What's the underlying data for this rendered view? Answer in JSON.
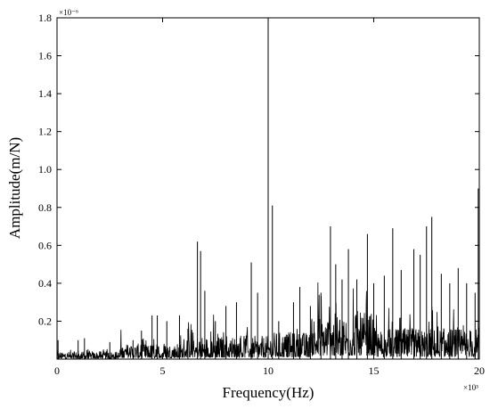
{
  "chart_data": {
    "type": "line",
    "title": "",
    "xlabel": "Frequency(Hz)",
    "ylabel": "Amplitude(m/N)",
    "x_multiplier": "×10³",
    "y_multiplier": "×10⁻⁶",
    "xlim": [
      0,
      20
    ],
    "ylim": [
      0,
      1.8
    ],
    "x_ticks": [
      0,
      5,
      10,
      15,
      20
    ],
    "x_tick_labels": [
      "0",
      "5",
      "10",
      "15",
      "20"
    ],
    "y_ticks": [
      0.2,
      0.4,
      0.6,
      0.8,
      1.0,
      1.2,
      1.4,
      1.6,
      1.8
    ],
    "y_tick_labels": [
      "0.2",
      "0.4",
      "0.6",
      "0.8",
      "1.0",
      "1.2",
      "1.4",
      "1.6",
      "1.8"
    ],
    "grid": false,
    "legend": "none",
    "line_color": "#000000",
    "series": [
      {
        "x_units": "kHz",
        "y_units": "1e-6 m/N",
        "peaks": [
          {
            "x": 0.05,
            "y": 0.1
          },
          {
            "x": 1.0,
            "y": 0.1
          },
          {
            "x": 1.3,
            "y": 0.11
          },
          {
            "x": 2.5,
            "y": 0.09
          },
          {
            "x": 3.6,
            "y": 0.1
          },
          {
            "x": 4.0,
            "y": 0.15
          },
          {
            "x": 4.5,
            "y": 0.23
          },
          {
            "x": 4.75,
            "y": 0.23
          },
          {
            "x": 5.2,
            "y": 0.2
          },
          {
            "x": 5.8,
            "y": 0.23
          },
          {
            "x": 6.2,
            "y": 0.16
          },
          {
            "x": 6.65,
            "y": 0.62
          },
          {
            "x": 6.8,
            "y": 0.57
          },
          {
            "x": 7.0,
            "y": 0.36
          },
          {
            "x": 7.5,
            "y": 0.2
          },
          {
            "x": 8.0,
            "y": 0.28
          },
          {
            "x": 8.5,
            "y": 0.3
          },
          {
            "x": 9.2,
            "y": 0.51
          },
          {
            "x": 9.5,
            "y": 0.35
          },
          {
            "x": 10.0,
            "y": 1.8
          },
          {
            "x": 10.2,
            "y": 0.81
          },
          {
            "x": 10.5,
            "y": 0.2
          },
          {
            "x": 11.2,
            "y": 0.3
          },
          {
            "x": 11.5,
            "y": 0.38
          },
          {
            "x": 12.0,
            "y": 0.28
          },
          {
            "x": 12.5,
            "y": 0.35
          },
          {
            "x": 12.95,
            "y": 0.7
          },
          {
            "x": 13.2,
            "y": 0.5
          },
          {
            "x": 13.5,
            "y": 0.42
          },
          {
            "x": 13.8,
            "y": 0.58
          },
          {
            "x": 14.2,
            "y": 0.42
          },
          {
            "x": 14.7,
            "y": 0.66
          },
          {
            "x": 15.0,
            "y": 0.4
          },
          {
            "x": 15.5,
            "y": 0.44
          },
          {
            "x": 15.9,
            "y": 0.69
          },
          {
            "x": 16.3,
            "y": 0.47
          },
          {
            "x": 16.9,
            "y": 0.58
          },
          {
            "x": 17.2,
            "y": 0.55
          },
          {
            "x": 17.5,
            "y": 0.7
          },
          {
            "x": 17.75,
            "y": 0.75
          },
          {
            "x": 18.2,
            "y": 0.45
          },
          {
            "x": 18.6,
            "y": 0.4
          },
          {
            "x": 19.0,
            "y": 0.48
          },
          {
            "x": 19.4,
            "y": 0.4
          },
          {
            "x": 19.8,
            "y": 0.35
          },
          {
            "x": 19.95,
            "y": 0.9
          }
        ],
        "baseline_segments": [
          {
            "x0": 0,
            "x1": 3,
            "level": 0.02
          },
          {
            "x0": 3,
            "x1": 6,
            "level": 0.04
          },
          {
            "x0": 6,
            "x1": 10,
            "level": 0.06
          },
          {
            "x0": 10,
            "x1": 12,
            "level": 0.07
          },
          {
            "x0": 12,
            "x1": 15,
            "level": 0.12
          },
          {
            "x0": 15,
            "x1": 20,
            "level": 0.08
          }
        ]
      }
    ]
  }
}
